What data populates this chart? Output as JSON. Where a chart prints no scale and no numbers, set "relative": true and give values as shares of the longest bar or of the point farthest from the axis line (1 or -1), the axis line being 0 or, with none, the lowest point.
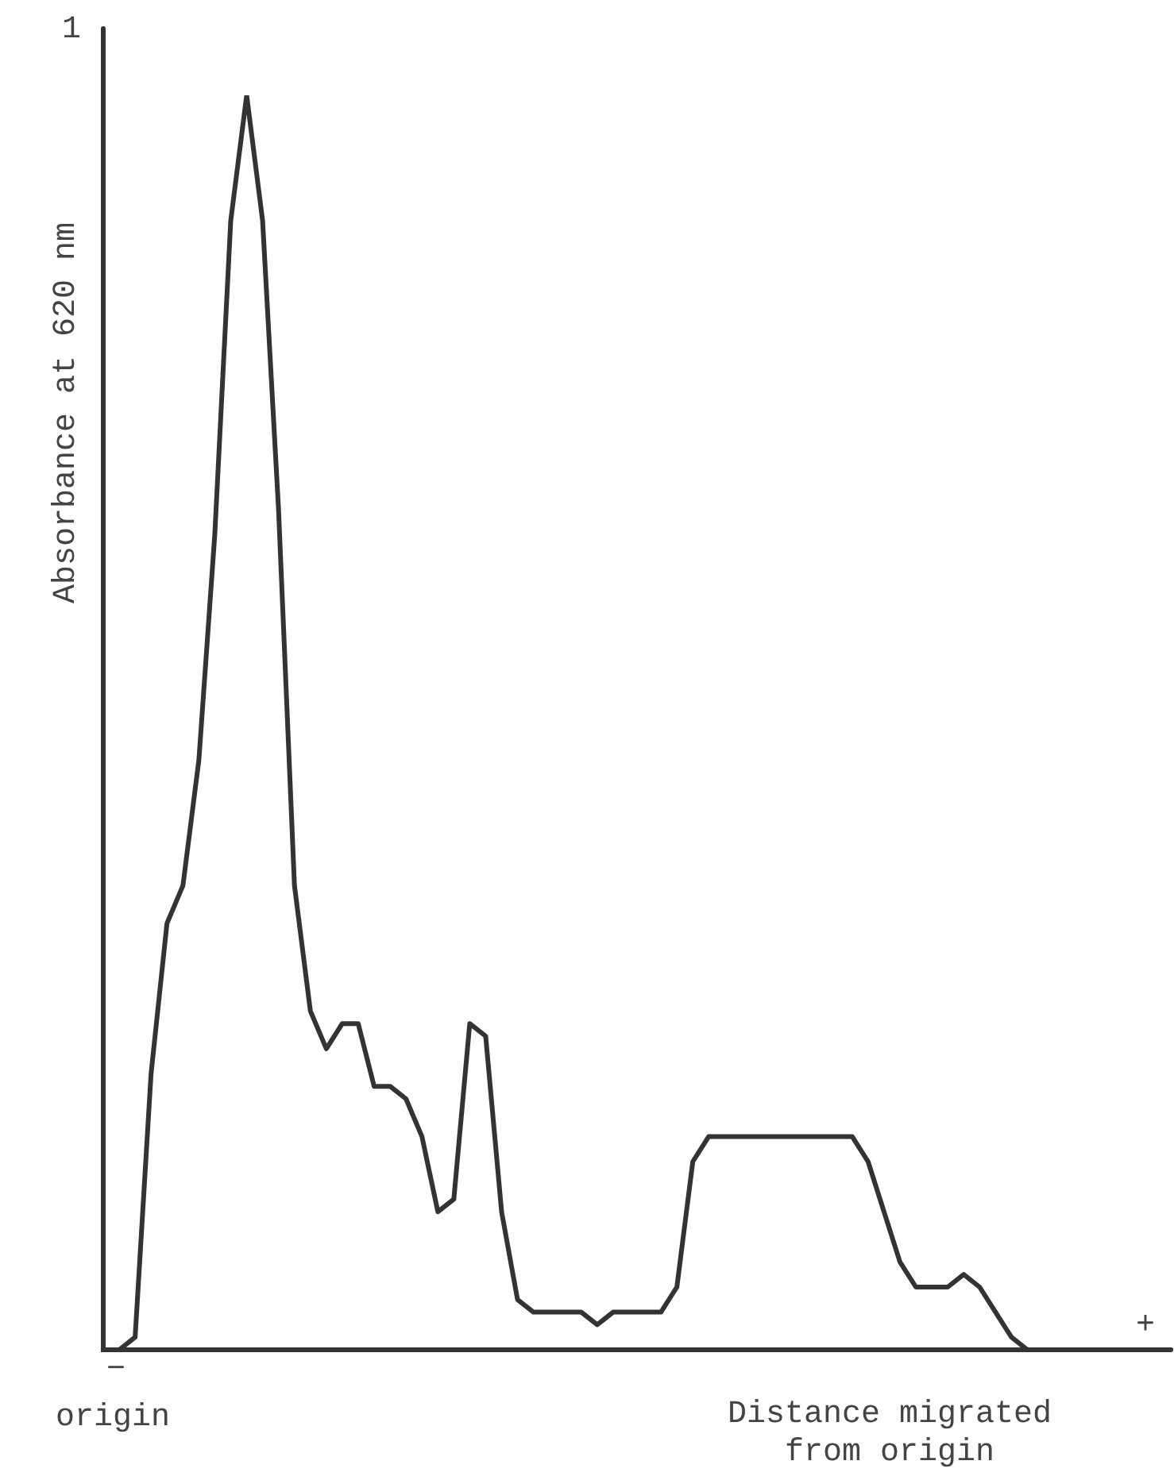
{
  "chart_data": {
    "type": "line",
    "relative": true,
    "xlabel": "Distance migrated\nfrom origin",
    "ylabel": "Absorbance at 620 nm",
    "annotations": [
      "1",
      "origin",
      "−",
      "+"
    ],
    "color": "#333333",
    "grid": false,
    "legend": false,
    "marker": "none",
    "line_style": "solid",
    "categories": [
      null,
      null,
      null,
      null,
      null,
      null,
      null,
      null,
      null,
      null,
      null,
      null,
      null,
      null,
      null,
      null,
      null,
      null,
      null,
      null,
      null,
      null,
      null,
      null,
      null,
      null,
      null,
      null,
      null,
      null,
      null,
      null,
      null,
      null,
      null,
      null,
      null,
      null,
      null,
      null,
      null,
      null,
      null,
      null,
      null,
      null,
      null,
      null,
      null,
      null,
      null,
      null,
      null,
      null,
      null,
      null,
      null,
      null,
      null,
      null,
      null,
      null,
      null,
      null,
      null,
      null,
      null,
      null
    ],
    "values": [
      0,
      0,
      0.01,
      0.22,
      0.34,
      0.37,
      0.47,
      0.65,
      0.9,
      1,
      0.9,
      0.67,
      0.37,
      0.27,
      0.24,
      0.26,
      0.26,
      0.21,
      0.21,
      0.2,
      0.17,
      0.11,
      0.12,
      0.26,
      0.25,
      0.11,
      0.04,
      0.03,
      0.03,
      0.03,
      0.03,
      0.02,
      0.03,
      0.03,
      0.03,
      0.03,
      0.05,
      0.15,
      0.17,
      0.17,
      0.17,
      0.17,
      0.17,
      0.17,
      0.17,
      0.17,
      0.17,
      0.17,
      0.15,
      0.11,
      0.07,
      0.05,
      0.05,
      0.05,
      0.06,
      0.05,
      0.03,
      0.01,
      0,
      0,
      0,
      0,
      0,
      0,
      0,
      0,
      0,
      0
    ]
  }
}
